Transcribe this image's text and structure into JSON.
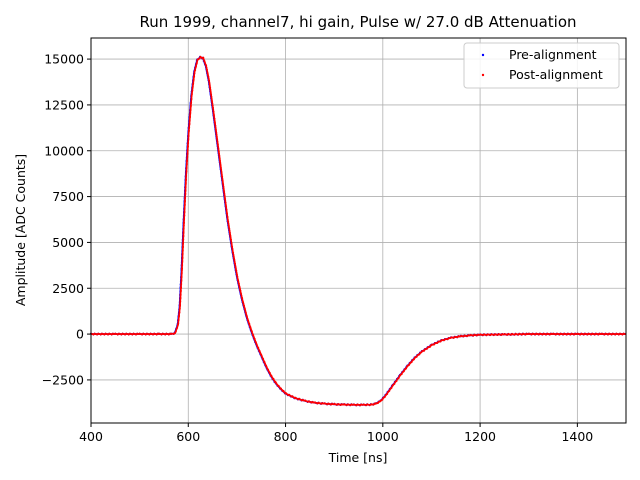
{
  "chart_data": {
    "type": "scatter",
    "title": "Run 1999, channel7, hi gain, Pulse w/ 27.0 dB Attenuation",
    "xlabel": "Time [ns]",
    "ylabel": "Amplitude [ADC Counts]",
    "xlim": [
      400,
      1500
    ],
    "ylim": [
      -4850,
      16150
    ],
    "xticks": [
      400,
      600,
      800,
      1000,
      1200,
      1400
    ],
    "yticks": [
      -2500,
      0,
      2500,
      5000,
      7500,
      10000,
      12500,
      15000
    ],
    "ytick_labels": [
      "−2500",
      "0",
      "2500",
      "5000",
      "7500",
      "10000",
      "12500",
      "15000"
    ],
    "grid": true,
    "legend_position": "top-right",
    "series": [
      {
        "name": "Pre-alignment",
        "color": "#0000ff",
        "marker": "point",
        "points": [
          [
            400,
            0
          ],
          [
            450,
            0
          ],
          [
            500,
            0
          ],
          [
            540,
            0
          ],
          [
            565,
            0
          ],
          [
            572,
            50
          ],
          [
            578,
            500
          ],
          [
            582,
            1500
          ],
          [
            586,
            3500
          ],
          [
            590,
            6000
          ],
          [
            595,
            8800
          ],
          [
            600,
            11000
          ],
          [
            606,
            13000
          ],
          [
            612,
            14300
          ],
          [
            618,
            14950
          ],
          [
            624,
            15100
          ],
          [
            630,
            15050
          ],
          [
            636,
            14600
          ],
          [
            642,
            13800
          ],
          [
            650,
            12300
          ],
          [
            660,
            10300
          ],
          [
            670,
            8300
          ],
          [
            680,
            6300
          ],
          [
            690,
            4600
          ],
          [
            700,
            3100
          ],
          [
            710,
            1900
          ],
          [
            720,
            900
          ],
          [
            730,
            100
          ],
          [
            740,
            -600
          ],
          [
            750,
            -1200
          ],
          [
            760,
            -1800
          ],
          [
            770,
            -2300
          ],
          [
            780,
            -2700
          ],
          [
            790,
            -3000
          ],
          [
            800,
            -3250
          ],
          [
            820,
            -3500
          ],
          [
            840,
            -3650
          ],
          [
            860,
            -3750
          ],
          [
            880,
            -3800
          ],
          [
            900,
            -3830
          ],
          [
            920,
            -3850
          ],
          [
            940,
            -3860
          ],
          [
            960,
            -3860
          ],
          [
            975,
            -3850
          ],
          [
            985,
            -3800
          ],
          [
            995,
            -3650
          ],
          [
            1005,
            -3350
          ],
          [
            1020,
            -2800
          ],
          [
            1035,
            -2250
          ],
          [
            1050,
            -1750
          ],
          [
            1065,
            -1300
          ],
          [
            1080,
            -950
          ],
          [
            1100,
            -600
          ],
          [
            1120,
            -350
          ],
          [
            1140,
            -200
          ],
          [
            1160,
            -120
          ],
          [
            1180,
            -70
          ],
          [
            1200,
            -40
          ],
          [
            1250,
            -20
          ],
          [
            1300,
            0
          ],
          [
            1350,
            0
          ],
          [
            1400,
            0
          ],
          [
            1450,
            0
          ],
          [
            1500,
            0
          ]
        ]
      },
      {
        "name": "Post-alignment",
        "color": "#ff0000",
        "marker": "point",
        "points": [
          [
            400,
            0
          ],
          [
            450,
            0
          ],
          [
            500,
            0
          ],
          [
            540,
            0
          ],
          [
            565,
            0
          ],
          [
            573,
            50
          ],
          [
            579,
            500
          ],
          [
            583,
            1500
          ],
          [
            587,
            3500
          ],
          [
            591,
            6000
          ],
          [
            596,
            8800
          ],
          [
            601,
            11000
          ],
          [
            607,
            13000
          ],
          [
            613,
            14300
          ],
          [
            619,
            14950
          ],
          [
            625,
            15100
          ],
          [
            631,
            15050
          ],
          [
            637,
            14600
          ],
          [
            643,
            13800
          ],
          [
            651,
            12300
          ],
          [
            661,
            10300
          ],
          [
            671,
            8300
          ],
          [
            681,
            6300
          ],
          [
            691,
            4600
          ],
          [
            701,
            3100
          ],
          [
            711,
            1900
          ],
          [
            721,
            900
          ],
          [
            731,
            100
          ],
          [
            741,
            -600
          ],
          [
            751,
            -1200
          ],
          [
            761,
            -1800
          ],
          [
            771,
            -2300
          ],
          [
            781,
            -2700
          ],
          [
            791,
            -3000
          ],
          [
            801,
            -3250
          ],
          [
            821,
            -3500
          ],
          [
            841,
            -3650
          ],
          [
            861,
            -3750
          ],
          [
            881,
            -3800
          ],
          [
            901,
            -3830
          ],
          [
            921,
            -3850
          ],
          [
            941,
            -3860
          ],
          [
            961,
            -3860
          ],
          [
            976,
            -3850
          ],
          [
            986,
            -3800
          ],
          [
            996,
            -3650
          ],
          [
            1006,
            -3350
          ],
          [
            1021,
            -2800
          ],
          [
            1036,
            -2250
          ],
          [
            1051,
            -1750
          ],
          [
            1066,
            -1300
          ],
          [
            1081,
            -950
          ],
          [
            1101,
            -600
          ],
          [
            1121,
            -350
          ],
          [
            1141,
            -200
          ],
          [
            1161,
            -120
          ],
          [
            1181,
            -70
          ],
          [
            1201,
            -40
          ],
          [
            1251,
            -20
          ],
          [
            1301,
            0
          ],
          [
            1351,
            0
          ],
          [
            1401,
            0
          ],
          [
            1451,
            0
          ],
          [
            1500,
            0
          ]
        ]
      }
    ]
  }
}
